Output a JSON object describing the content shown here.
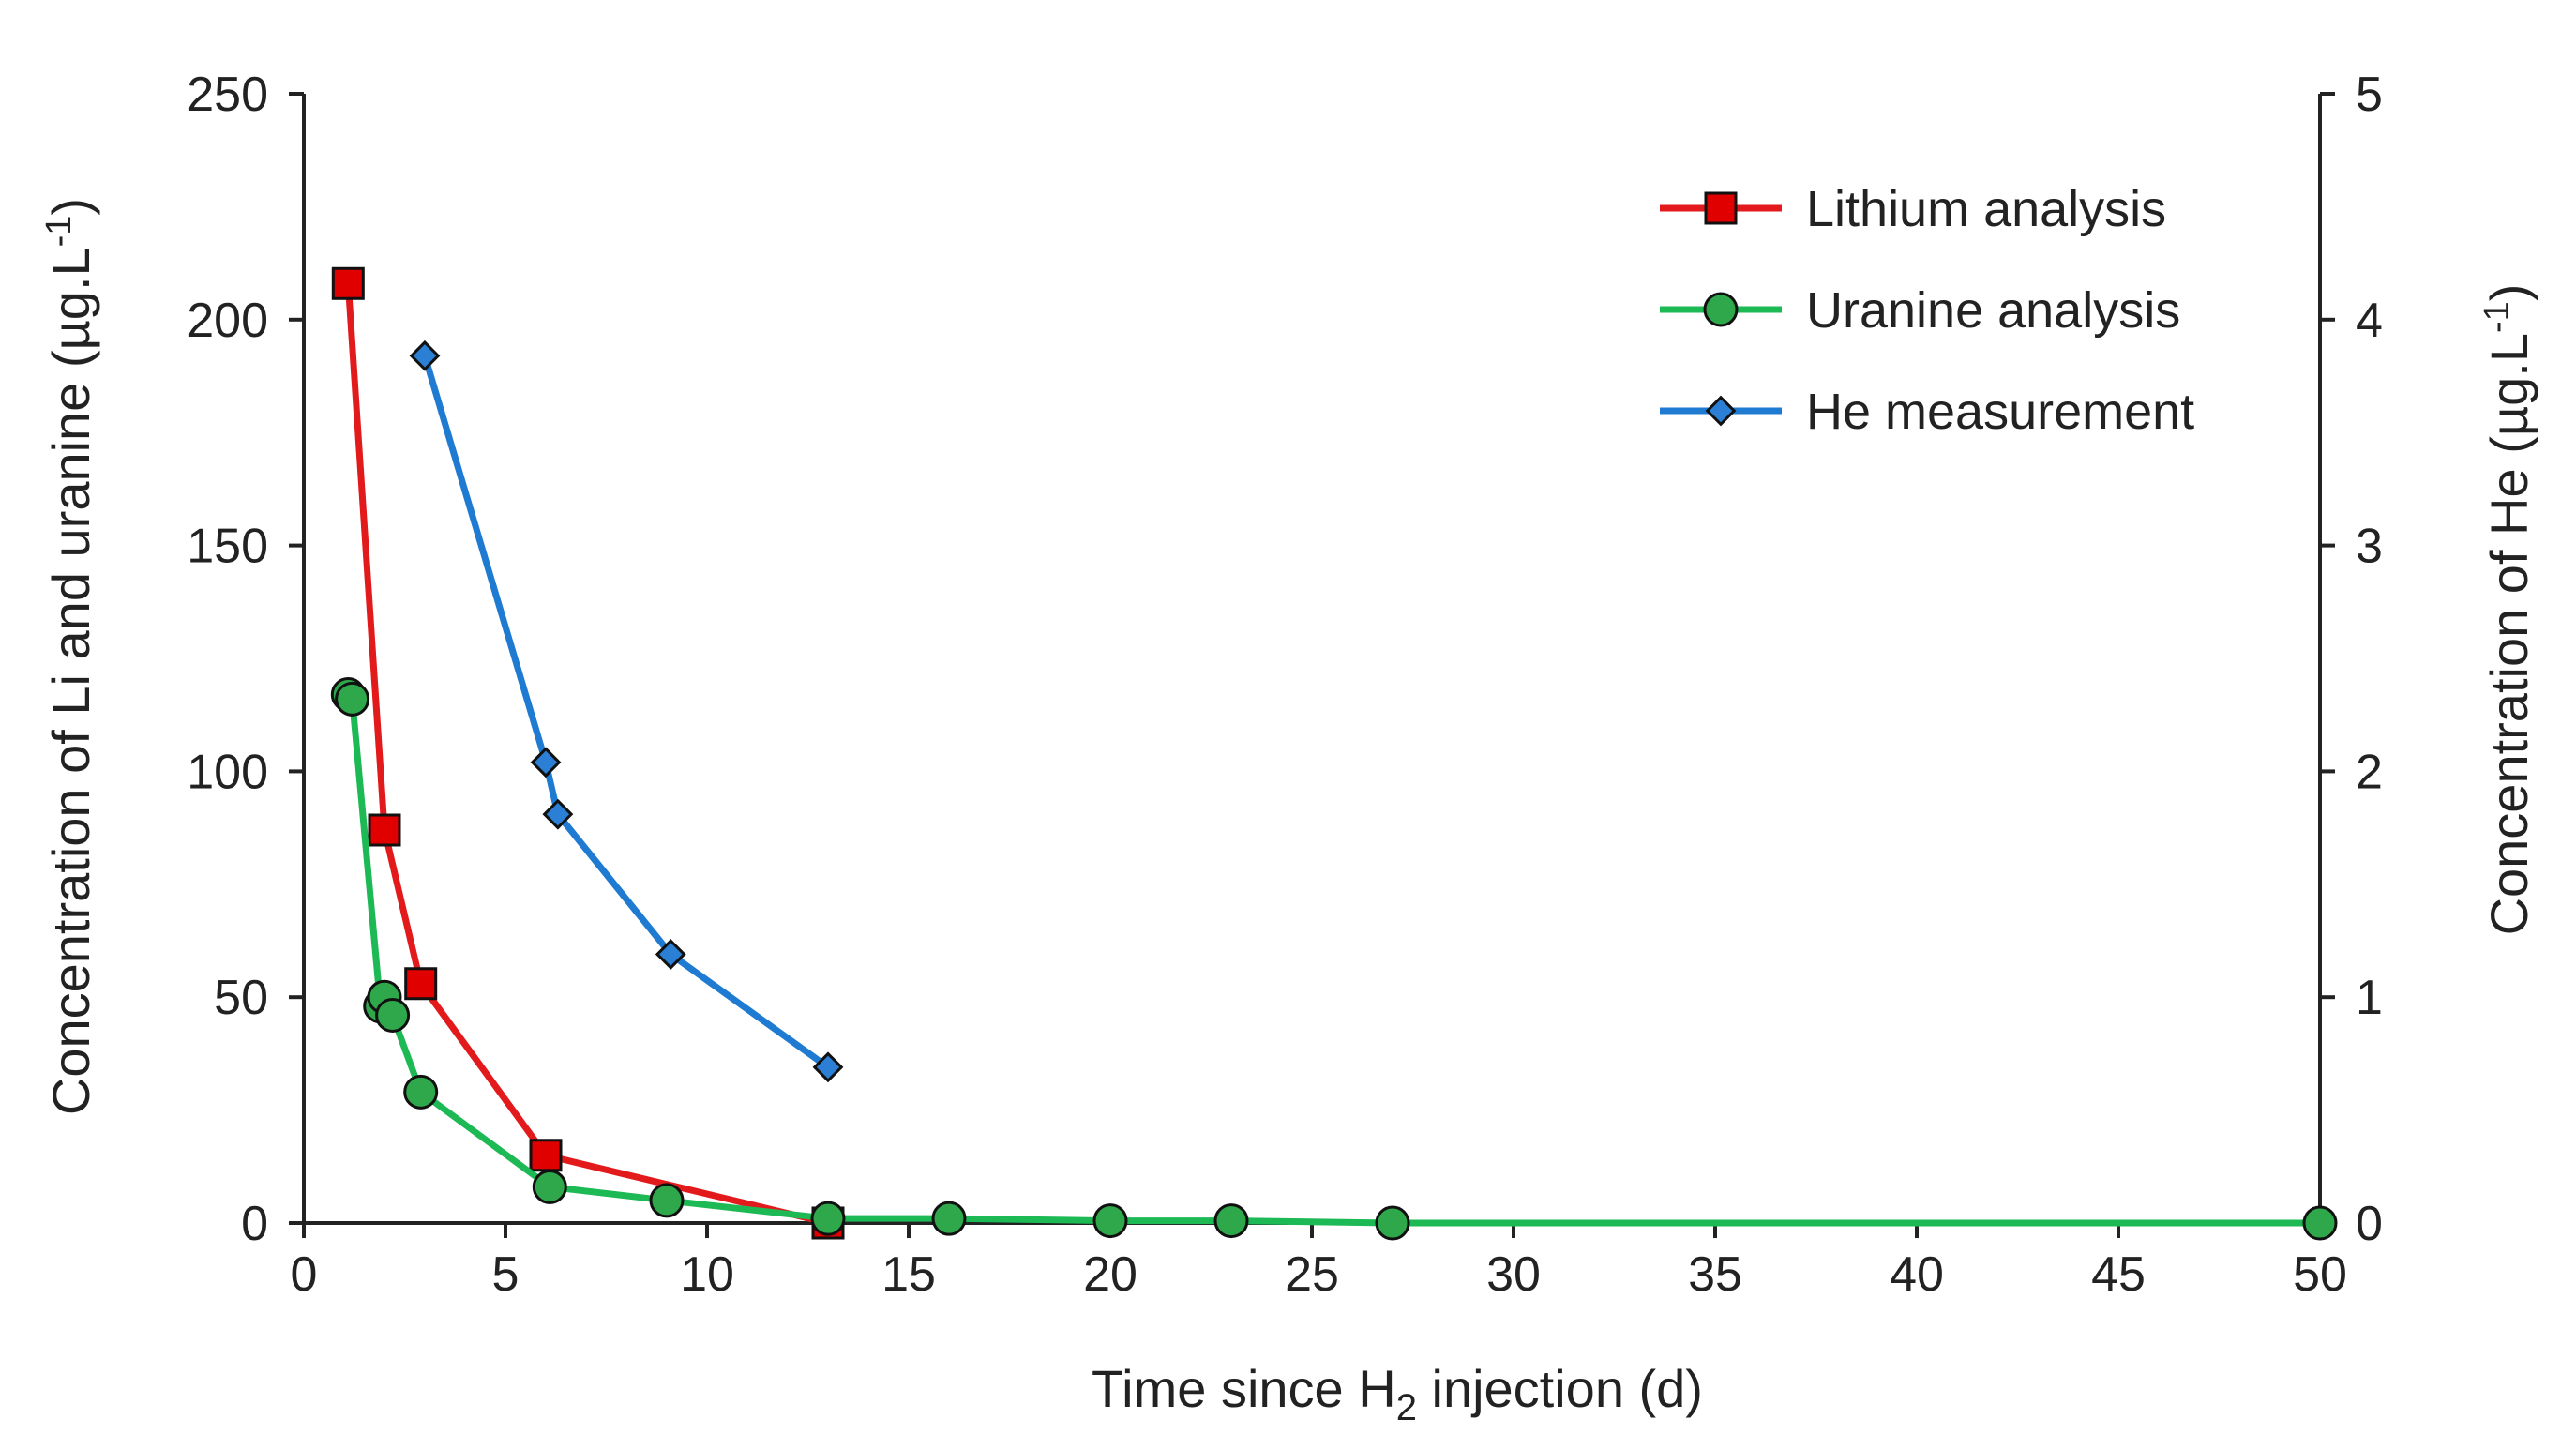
{
  "chart_data": {
    "type": "line",
    "xlabel": {
      "prefix": "Time since H",
      "subscript": "2",
      "suffix": " injection (d)"
    },
    "ylabel_left": {
      "text": "Concentration of Li and uranine  (µg.L",
      "superscript": "-1",
      "close": ")"
    },
    "ylabel_right": {
      "text": "Concentration of He  (µg.L",
      "superscript": "-1",
      "close": ")"
    },
    "xlim": [
      0,
      50
    ],
    "ylim_left": [
      0,
      250
    ],
    "ylim_right": [
      0,
      5
    ],
    "x_ticks": [
      0,
      5,
      10,
      15,
      20,
      25,
      30,
      35,
      40,
      45,
      50
    ],
    "y_ticks_left": [
      0,
      50,
      100,
      150,
      200,
      250
    ],
    "y_ticks_right": [
      0,
      1,
      2,
      3,
      4,
      5
    ],
    "series": [
      {
        "name": "Lithium analysis",
        "axis": "left",
        "color": "#e31a1c",
        "marker": "square",
        "marker_fill": "#e00000",
        "x": [
          1.1,
          2.0,
          2.9,
          6.0,
          13.0
        ],
        "y": [
          208,
          87,
          53,
          15,
          0
        ]
      },
      {
        "name": "Uranine analysis",
        "axis": "left",
        "color": "#1db954",
        "marker": "circle",
        "marker_fill": "#2ea84a",
        "x": [
          1.1,
          1.2,
          1.9,
          2.0,
          2.2,
          2.9,
          6.1,
          9.0,
          13.0,
          16.0,
          20.0,
          23.0,
          27.0,
          50.0
        ],
        "y": [
          117,
          116,
          48,
          50,
          46,
          29,
          8,
          5,
          1,
          1,
          0.5,
          0.5,
          0,
          0
        ]
      },
      {
        "name": "He measurement",
        "axis": "right",
        "color": "#1f7bd2",
        "marker": "diamond",
        "marker_fill": "#2b7fd4",
        "x": [
          3.0,
          6.0,
          6.3,
          9.1,
          13.0
        ],
        "y": [
          3.84,
          2.04,
          1.81,
          1.19,
          0.69
        ]
      }
    ],
    "legend_position": "top-right"
  }
}
